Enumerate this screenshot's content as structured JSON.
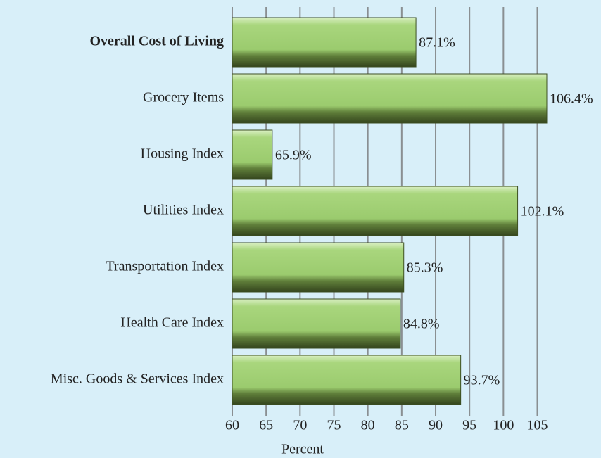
{
  "chart_data": {
    "type": "hbar",
    "categories": [
      "Overall Cost of Living",
      "Grocery Items",
      "Housing Index",
      "Utilities Index",
      "Transportation Index",
      "Health Care Index",
      "Misc. Goods & Services Index"
    ],
    "values": [
      87.1,
      106.4,
      65.9,
      102.1,
      85.3,
      84.8,
      93.7
    ],
    "value_labels": [
      "87.1%",
      "106.4%",
      "65.9%",
      "102.1%",
      "85.3%",
      "84.8%",
      "93.7%"
    ],
    "color": "#9fcf72",
    "xlabel": "Percent",
    "xlim": [
      60,
      106.4
    ],
    "xticks": [
      60,
      65,
      70,
      75,
      80,
      85,
      90,
      95,
      100,
      105
    ],
    "grid": true
  }
}
